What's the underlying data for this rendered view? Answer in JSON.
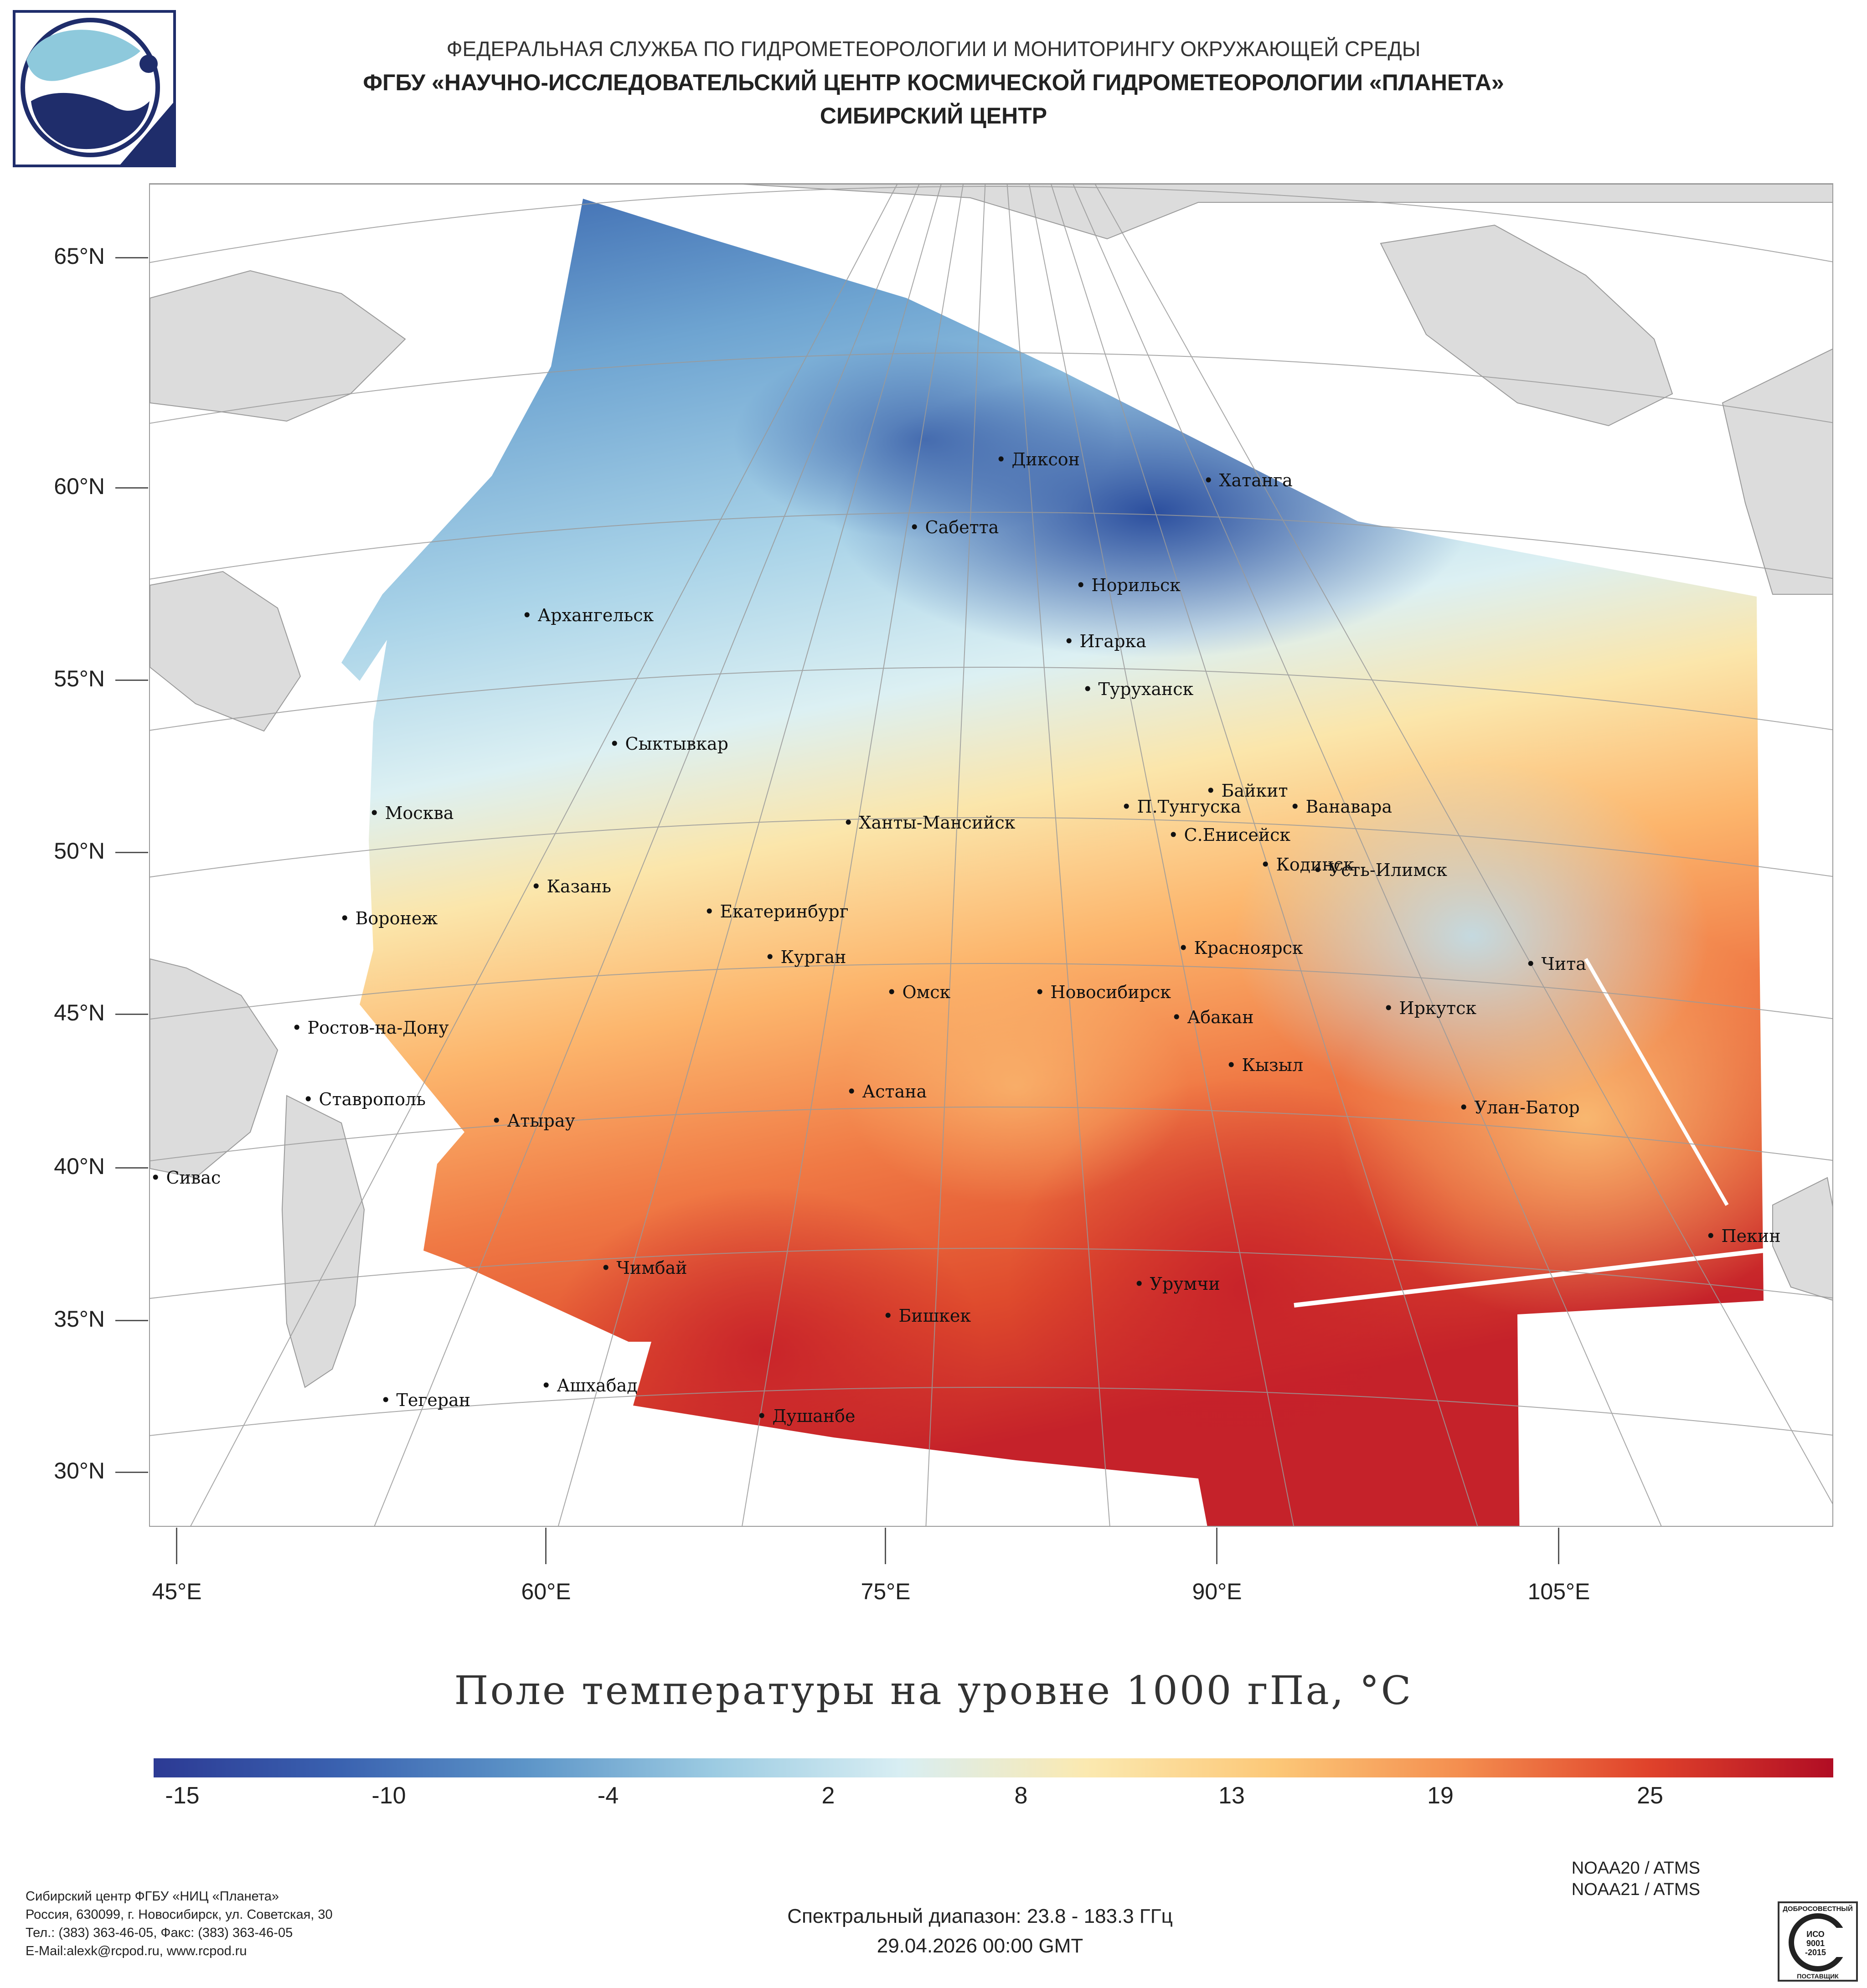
{
  "header": {
    "agency": "ФЕДЕРАЛЬНАЯ СЛУЖБА ПО ГИДРОМЕТЕОРОЛОГИИ И МОНИТОРИНГУ ОКРУЖАЮЩЕЙ СРЕДЫ",
    "institute": "ФГБУ «НАУЧНО-ИССЛЕДОВАТЕЛЬСКИЙ ЦЕНТР КОСМИЧЕСКОЙ ГИДРОМЕТЕОРОЛОГИИ «ПЛАНЕТА»",
    "center": "СИБИРСКИЙ ЦЕНТР"
  },
  "map": {
    "latitude_labels": [
      "65°N",
      "60°N",
      "55°N",
      "50°N",
      "45°N",
      "40°N",
      "35°N",
      "30°N"
    ],
    "longitude_labels": [
      "45°E",
      "60°E",
      "75°E",
      "90°E",
      "105°E"
    ],
    "cities": [
      {
        "name": "Диксон"
      },
      {
        "name": "Хатанга"
      },
      {
        "name": "Сабетта"
      },
      {
        "name": "Норильск"
      },
      {
        "name": "Архангельск"
      },
      {
        "name": "Игарка"
      },
      {
        "name": "Туруханск"
      },
      {
        "name": "Сыктывкар"
      },
      {
        "name": "Байкит"
      },
      {
        "name": "П.Тунгуска"
      },
      {
        "name": "Ванавара"
      },
      {
        "name": "Москва"
      },
      {
        "name": "Ханты-Мансийск"
      },
      {
        "name": "С.Енисейск"
      },
      {
        "name": "Кодинск"
      },
      {
        "name": "Усть-Илимск"
      },
      {
        "name": "Казань"
      },
      {
        "name": "Екатеринбург"
      },
      {
        "name": "Воронеж"
      },
      {
        "name": "Красноярск"
      },
      {
        "name": "Курган"
      },
      {
        "name": "Чита"
      },
      {
        "name": "Омск"
      },
      {
        "name": "Новосибирск"
      },
      {
        "name": "Иркутск"
      },
      {
        "name": "Ростов-на-Дону"
      },
      {
        "name": "Абакан"
      },
      {
        "name": "Кызыл"
      },
      {
        "name": "Астана"
      },
      {
        "name": "Ставрополь"
      },
      {
        "name": "Улан-Батор"
      },
      {
        "name": "Атырау"
      },
      {
        "name": "Сивас"
      },
      {
        "name": "Пекин"
      },
      {
        "name": "Чимбай"
      },
      {
        "name": "Урумчи"
      },
      {
        "name": "Бишкек"
      },
      {
        "name": "Ашхабад"
      },
      {
        "name": "Тегеран"
      },
      {
        "name": "Душанбе"
      }
    ]
  },
  "title": "Поле температуры на уровне 1000 гПа, °C",
  "colorbar": {
    "ticks": [
      "-15",
      "-10",
      "-4",
      "2",
      "8",
      "13",
      "19",
      "25"
    ],
    "colors": [
      "#2c3a94",
      "#3a62b0",
      "#5d95c8",
      "#9ccbe2",
      "#d8eef3",
      "#fbe9b0",
      "#fcc878",
      "#f48e4f",
      "#e0432b",
      "#b10d24"
    ]
  },
  "footer": {
    "org_lines": [
      "Сибирский центр ФГБУ «НИЦ «Планета»",
      "Россия, 630099, г. Новосибирск, ул. Советская, 30",
      "Тел.: (383) 363-46-05, Факс: (383) 363-46-05",
      "E-Mail:alexk@rcpod.ru, www.rcpod.ru"
    ],
    "spectral": "Спектральный диапазон: 23.8 - 183.3 ГГц",
    "datetime": "29.04.2026 00:00 GMT",
    "satellites": [
      "NOAA20 / ATMS",
      "NOAA21 / ATMS"
    ],
    "iso_top": "ДОБРОСОВЕСТНЫЙ",
    "iso_mid": "ИСО 9001 -2015",
    "iso_bottom": "ПОСТАВЩИК"
  }
}
